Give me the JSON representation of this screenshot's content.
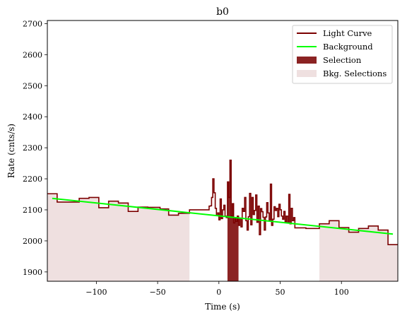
{
  "chart_data": {
    "type": "line",
    "title": "b0",
    "xlabel": "Time (s)",
    "ylabel": "Rate (cnts/s)",
    "xlim": [
      -140,
      146
    ],
    "ylim": [
      1870,
      2710
    ],
    "xticks": [
      -100,
      -50,
      0,
      50,
      100
    ],
    "yticks": [
      1900,
      2000,
      2100,
      2200,
      2300,
      2400,
      2500,
      2600,
      2700
    ],
    "grid": false,
    "legend_position": "top-right",
    "colors": {
      "light_curve": "#7b0000",
      "background": "#00ff00",
      "selection": "#8b2323",
      "bkg_selection": "#efe0e0"
    },
    "legend": {
      "light_curve": "Light Curve",
      "background": "Background",
      "selection": "Selection",
      "bkg_selections": "Bkg. Selections"
    },
    "background_fit": {
      "x": [
        -136,
        142
      ],
      "y": [
        2137,
        2022
      ]
    },
    "selection_interval": [
      7,
      16
    ],
    "bkg_selection_intervals": [
      [
        -140,
        -24
      ],
      [
        82,
        146
      ]
    ],
    "light_curve_steps": [
      [
        -140,
        2152
      ],
      [
        -132,
        2125
      ],
      [
        -114,
        2137
      ],
      [
        -106,
        2140
      ],
      [
        -98,
        2107
      ],
      [
        -90,
        2128
      ],
      [
        -82,
        2122
      ],
      [
        -74,
        2095
      ],
      [
        -66,
        2109
      ],
      [
        -58,
        2108
      ],
      [
        -48,
        2103
      ],
      [
        -41,
        2083
      ],
      [
        -33,
        2089
      ],
      [
        -24,
        2100
      ],
      [
        -15,
        2100
      ],
      [
        -8,
        2112
      ],
      [
        -7,
        2113
      ],
      [
        -6,
        2140
      ],
      [
        -5,
        2200
      ],
      [
        -4,
        2155
      ],
      [
        -3,
        2105
      ],
      [
        -2,
        2082
      ],
      [
        -1,
        2090
      ],
      [
        0,
        2068
      ],
      [
        1,
        2135
      ],
      [
        2,
        2072
      ],
      [
        3,
        2100
      ],
      [
        4,
        2115
      ],
      [
        5,
        2080
      ],
      [
        6,
        2075
      ],
      [
        7,
        2190
      ],
      [
        8,
        2140
      ],
      [
        9,
        2260
      ],
      [
        10,
        2080
      ],
      [
        11,
        2120
      ],
      [
        12,
        2058
      ],
      [
        13,
        2075
      ],
      [
        14,
        2063
      ],
      [
        15,
        2080
      ],
      [
        16,
        2050
      ],
      [
        17,
        2073
      ],
      [
        18,
        2045
      ],
      [
        19,
        2105
      ],
      [
        20,
        2095
      ],
      [
        21,
        2140
      ],
      [
        22,
        2065
      ],
      [
        23,
        2035
      ],
      [
        24,
        2078
      ],
      [
        25,
        2153
      ],
      [
        26,
        2052
      ],
      [
        27,
        2140
      ],
      [
        28,
        2085
      ],
      [
        29,
        2098
      ],
      [
        30,
        2148
      ],
      [
        31,
        2060
      ],
      [
        32,
        2112
      ],
      [
        33,
        2020
      ],
      [
        34,
        2104
      ],
      [
        35,
        2094
      ],
      [
        36,
        2076
      ],
      [
        37,
        2035
      ],
      [
        38,
        2077
      ],
      [
        39,
        2123
      ],
      [
        40,
        2090
      ],
      [
        41,
        2065
      ],
      [
        42,
        2183
      ],
      [
        43,
        2050
      ],
      [
        44,
        2070
      ],
      [
        45,
        2110
      ],
      [
        46,
        2098
      ],
      [
        47,
        2105
      ],
      [
        48,
        2078
      ],
      [
        49,
        2118
      ],
      [
        50,
        2100
      ],
      [
        51,
        2080
      ],
      [
        52,
        2070
      ],
      [
        53,
        2095
      ],
      [
        54,
        2062
      ],
      [
        55,
        2080
      ],
      [
        56,
        2060
      ],
      [
        57,
        2150
      ],
      [
        58,
        2055
      ],
      [
        59,
        2105
      ],
      [
        60,
        2065
      ],
      [
        61,
        2075
      ],
      [
        62,
        2042
      ],
      [
        71,
        2040
      ],
      [
        82,
        2055
      ],
      [
        90,
        2065
      ],
      [
        98,
        2043
      ],
      [
        106,
        2028
      ],
      [
        114,
        2040
      ],
      [
        122,
        2048
      ],
      [
        130,
        2035
      ],
      [
        138,
        1988
      ],
      [
        146,
        1988
      ]
    ]
  }
}
